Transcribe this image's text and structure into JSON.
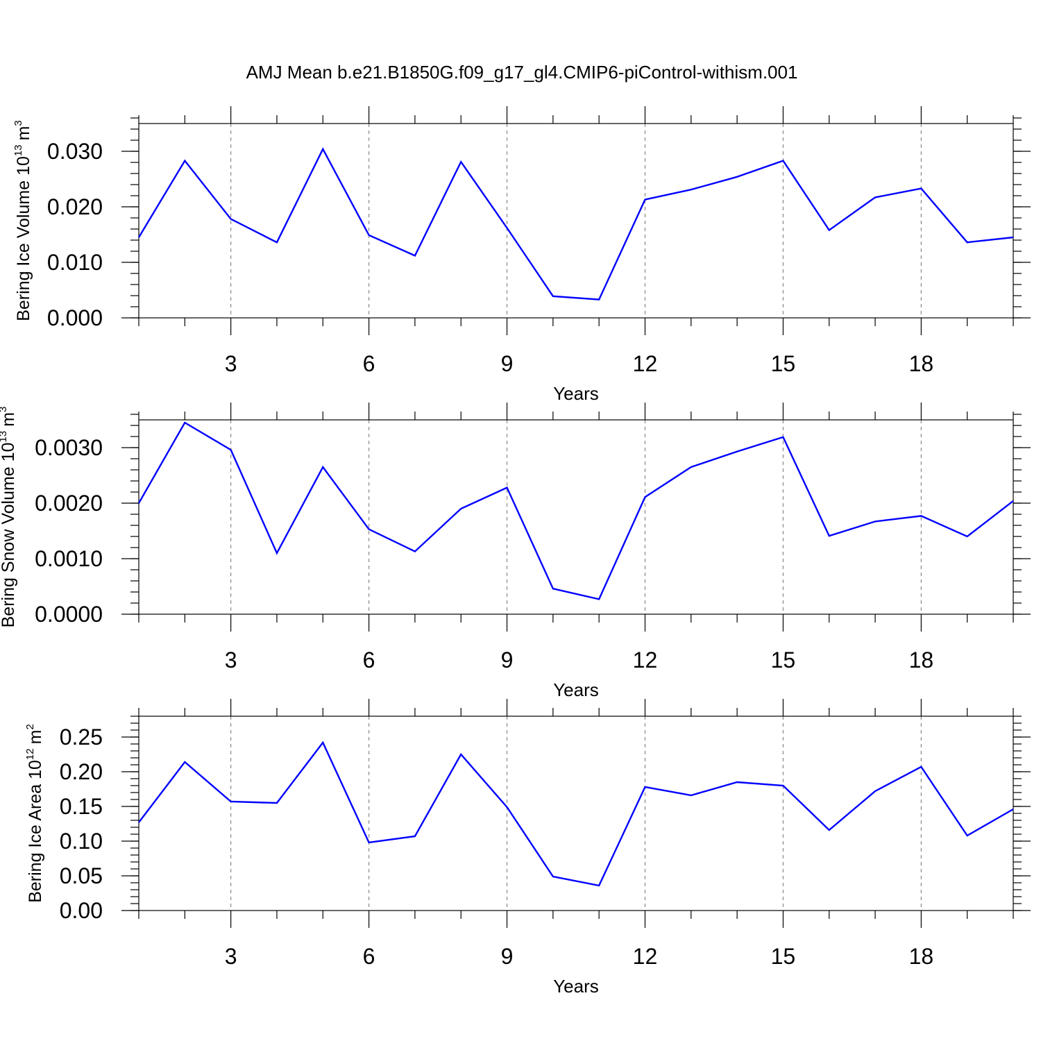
{
  "figure_title": "AMJ Mean b.e21.B1850G.f09_g17_gl4.CMIP6-piControl-withism.001",
  "colors": {
    "series": "#0000ff",
    "axes": "#000000",
    "grid": "#888888"
  },
  "chart_data": [
    {
      "type": "line",
      "ylabel": "Bering Ice Volume",
      "ylabel_unit": {
        "base": "10",
        "exp": "13",
        "unit": "m",
        "unit_exp": "3"
      },
      "xlabel": "Years",
      "xlim": [
        1,
        20
      ],
      "ylim": [
        0,
        0.035
      ],
      "xticks": [
        3,
        6,
        9,
        12,
        15,
        18
      ],
      "xtick_labels": [
        "3",
        "6",
        "9",
        "12",
        "15",
        "18"
      ],
      "yticks": [
        0,
        0.01,
        0.02,
        0.03
      ],
      "ytick_labels": [
        "0.000",
        "0.010",
        "0.020",
        "0.030"
      ],
      "grid": "vertical dashed at major x ticks",
      "x": [
        1,
        2,
        3,
        4,
        5,
        6,
        7,
        8,
        9,
        10,
        11,
        12,
        13,
        14,
        15,
        16,
        17,
        18,
        19,
        20
      ],
      "series": [
        {
          "values": [
            0.0145,
            0.0283,
            0.0178,
            0.0136,
            0.0304,
            0.0149,
            0.0112,
            0.0281,
            0.0162,
            0.0039,
            0.0033,
            0.0213,
            0.0231,
            0.0254,
            0.0283,
            0.0158,
            0.0217,
            0.0233,
            0.0136,
            0.0145
          ]
        }
      ]
    },
    {
      "type": "line",
      "ylabel": "Bering Snow Volume",
      "ylabel_unit": {
        "base": "10",
        "exp": "13",
        "unit": "m",
        "unit_exp": "3"
      },
      "xlabel": "Years",
      "xlim": [
        1,
        20
      ],
      "ylim": [
        0,
        0.0035
      ],
      "xticks": [
        3,
        6,
        9,
        12,
        15,
        18
      ],
      "xtick_labels": [
        "3",
        "6",
        "9",
        "12",
        "15",
        "18"
      ],
      "yticks": [
        0,
        0.001,
        0.002,
        0.003
      ],
      "ytick_labels": [
        "0.0000",
        "0.0010",
        "0.0020",
        "0.0030"
      ],
      "grid": "vertical dashed at major x ticks",
      "x": [
        1,
        2,
        3,
        4,
        5,
        6,
        7,
        8,
        9,
        10,
        11,
        12,
        13,
        14,
        15,
        16,
        17,
        18,
        19,
        20
      ],
      "series": [
        {
          "values": [
            0.002,
            0.00345,
            0.00296,
            0.0011,
            0.00265,
            0.00153,
            0.00113,
            0.0019,
            0.00228,
            0.00046,
            0.00027,
            0.00211,
            0.00265,
            0.00293,
            0.00319,
            0.00141,
            0.00167,
            0.00177,
            0.0014,
            0.00204
          ]
        }
      ]
    },
    {
      "type": "line",
      "ylabel": "Bering Ice Area",
      "ylabel_unit": {
        "base": "10",
        "exp": "12",
        "unit": "m",
        "unit_exp": "2"
      },
      "xlabel": "Years",
      "xlim": [
        1,
        20
      ],
      "ylim": [
        0,
        0.28
      ],
      "xticks": [
        3,
        6,
        9,
        12,
        15,
        18
      ],
      "xtick_labels": [
        "3",
        "6",
        "9",
        "12",
        "15",
        "18"
      ],
      "yticks": [
        0,
        0.05,
        0.1,
        0.15,
        0.2,
        0.25
      ],
      "ytick_labels": [
        "0.00",
        "0.05",
        "0.10",
        "0.15",
        "0.20",
        "0.25"
      ],
      "grid": "vertical dashed at major x ticks",
      "x": [
        1,
        2,
        3,
        4,
        5,
        6,
        7,
        8,
        9,
        10,
        11,
        12,
        13,
        14,
        15,
        16,
        17,
        18,
        19,
        20
      ],
      "series": [
        {
          "values": [
            0.127,
            0.214,
            0.157,
            0.155,
            0.242,
            0.098,
            0.107,
            0.225,
            0.149,
            0.049,
            0.036,
            0.178,
            0.166,
            0.185,
            0.18,
            0.116,
            0.172,
            0.207,
            0.108,
            0.146
          ]
        }
      ]
    }
  ]
}
